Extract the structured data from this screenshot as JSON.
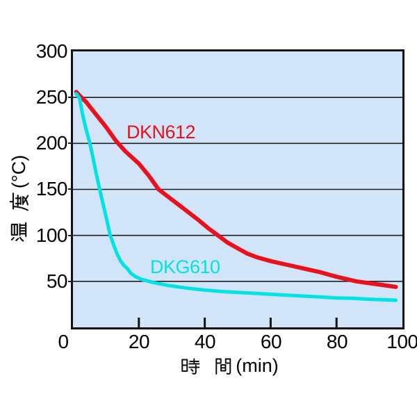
{
  "window": {
    "background": "#ffffff",
    "description": "cooling curve line chart"
  },
  "chart_data": {
    "type": "line",
    "title": "",
    "xlabel": "時間(min)",
    "ylabel": "温度(°C)",
    "xlabel_unit": "(min)",
    "ylabel_unit": "(°C)",
    "xlabel_kanji": [
      "時",
      "間"
    ],
    "ylabel_kanji": [
      "温",
      "度"
    ],
    "xlim": [
      0,
      100
    ],
    "ylim": [
      0,
      300
    ],
    "x_ticks": [
      0,
      20,
      40,
      60,
      80,
      100
    ],
    "y_ticks": [
      300,
      250,
      200,
      150,
      100,
      50
    ],
    "x_inner_ticks": [
      20,
      40,
      60,
      80
    ],
    "grid": "horizontal-only",
    "plot_bg": "#d2e5f8",
    "frame_color": "#111111",
    "gridline_color": "#1f1f1f",
    "legend_position": "inline-annotations",
    "series": [
      {
        "name": "DKN612",
        "color": "#e8111e",
        "stroke_px": 6,
        "x": [
          1,
          2,
          4,
          6,
          8,
          10,
          13,
          16,
          20,
          23,
          26,
          30,
          34,
          38,
          41,
          44,
          47,
          50,
          53,
          56,
          60,
          65,
          70,
          75,
          80,
          86,
          90,
          94,
          98
        ],
        "y": [
          256,
          252,
          245,
          236,
          227,
          218,
          203,
          191,
          178,
          165,
          150,
          139,
          128,
          117,
          108,
          100,
          92,
          86,
          80,
          76,
          72,
          68,
          64,
          60,
          55,
          50,
          48,
          46,
          44
        ]
      },
      {
        "name": "DKG610",
        "color": "#00e2e6",
        "stroke_px": 5,
        "x": [
          1,
          2,
          3,
          4,
          5,
          6,
          7,
          8,
          9,
          10,
          11.3,
          12.5,
          13.5,
          14.5,
          15.5,
          16.5,
          17.5,
          19,
          21,
          23,
          26,
          29,
          32,
          35,
          40,
          45,
          50,
          55,
          60,
          65,
          70,
          75,
          80,
          85,
          90,
          94,
          98
        ],
        "y": [
          254,
          249,
          230,
          215,
          202,
          186,
          168,
          152,
          136,
          121,
          100,
          88,
          79,
          72,
          67,
          64,
          59,
          55,
          52,
          50,
          47.5,
          45.5,
          44,
          42.5,
          40.5,
          39,
          38,
          37,
          36,
          35,
          34,
          33,
          32,
          31.5,
          30.5,
          30,
          29.5
        ]
      }
    ],
    "annotations": [
      {
        "text": "DKN612",
        "series": 0
      },
      {
        "text": "DKG610",
        "series": 1
      }
    ]
  },
  "axes": {
    "y_tick_labels": [
      "300",
      "250",
      "200",
      "150",
      "100",
      "50"
    ],
    "x_tick_labels": [
      "0",
      "20",
      "40",
      "60",
      "80",
      "100"
    ]
  }
}
